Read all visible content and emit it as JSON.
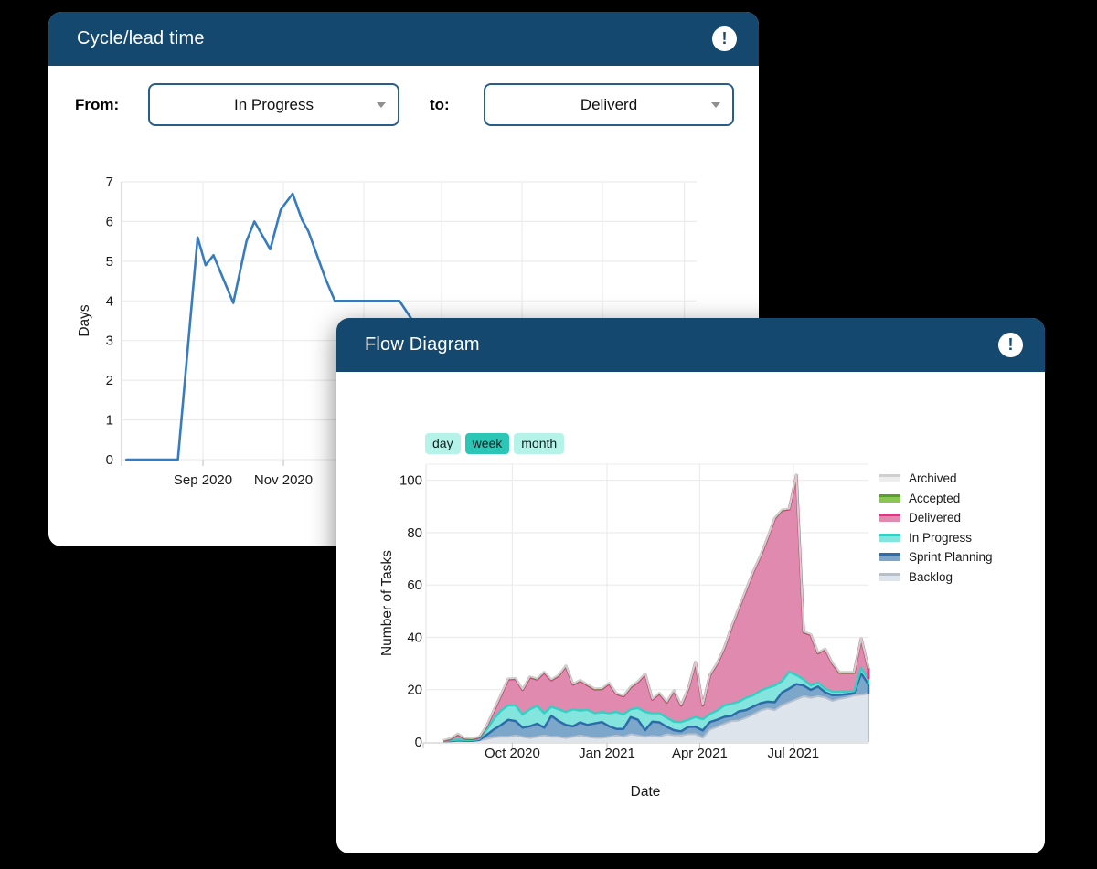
{
  "theme": {
    "page_background": "#000000",
    "card_background": "#ffffff",
    "header_color": "#14486e",
    "selected_interval_color": "#2cc6b6",
    "interval_color": "#b5f2e8",
    "cycle_line_color": "#377cbe"
  },
  "cycle_card": {
    "title": "Cycle/lead time",
    "alert_icon": "!",
    "from_label": "From:",
    "from_value": "In Progress",
    "to_label": "to:",
    "to_value": "Deliverd"
  },
  "flow_card": {
    "title": "Flow Diagram",
    "alert_icon": "!",
    "interval_buttons": [
      {
        "label": "day",
        "selected": false
      },
      {
        "label": "week",
        "selected": true
      },
      {
        "label": "month",
        "selected": false
      }
    ]
  },
  "chart_data": [
    {
      "type": "line",
      "name": "cycle-lead-time",
      "ylabel": "Days",
      "ylim": [
        0,
        7
      ],
      "yticks": [
        0,
        1,
        2,
        3,
        4,
        5,
        6,
        7
      ],
      "grid": true,
      "xticks": [
        {
          "label": "Sep 2020",
          "date": "2020-09-01"
        },
        {
          "label": "Nov 2020",
          "date": "2020-11-01"
        }
      ],
      "grid_dates": [
        "2020-09-01",
        "2020-11-01",
        "2021-01-01",
        "2021-03-01",
        "2021-05-01",
        "2021-07-01",
        "2021-09-01"
      ],
      "line_color": "#377cbe",
      "points": [
        [
          "2020-07-05",
          0
        ],
        [
          "2020-08-13",
          0
        ],
        [
          "2020-08-28",
          5.6
        ],
        [
          "2020-09-03",
          4.9
        ],
        [
          "2020-09-09",
          5.15
        ],
        [
          "2020-09-24",
          3.95
        ],
        [
          "2020-10-04",
          5.5
        ],
        [
          "2020-10-10",
          6.0
        ],
        [
          "2020-10-22",
          5.3
        ],
        [
          "2020-10-30",
          6.3
        ],
        [
          "2020-11-08",
          6.7
        ],
        [
          "2020-11-15",
          6.05
        ],
        [
          "2020-11-20",
          5.75
        ],
        [
          "2020-12-03",
          4.55
        ],
        [
          "2020-12-10",
          4.0
        ],
        [
          "2021-01-28",
          4.0
        ],
        [
          "2021-02-07",
          3.5
        ],
        [
          "2021-02-20",
          3.0
        ]
      ]
    },
    {
      "type": "area",
      "name": "flow-diagram",
      "stacked": true,
      "xlabel": "Date",
      "ylabel": "Number of Tasks",
      "ylim": [
        0,
        106
      ],
      "yticks": [
        0,
        20,
        40,
        60,
        80,
        100
      ],
      "grid": true,
      "legend_position": "right",
      "legend_order_top_to_bottom": [
        "Archived",
        "Accepted",
        "Delivered",
        "In Progress",
        "Sprint Planning",
        "Backlog"
      ],
      "start_date": "2020-07-26",
      "interval": "weekly",
      "interval_days": 7,
      "xticks": [
        {
          "label": "Oct 2020",
          "date": "2020-10-01"
        },
        {
          "label": "Jan 2021",
          "date": "2021-01-01"
        },
        {
          "label": "Apr 2021",
          "date": "2021-04-01"
        },
        {
          "label": "Jul 2021",
          "date": "2021-07-01"
        }
      ],
      "series": [
        {
          "name": "Backlog",
          "fill": "#dee4ec",
          "line": "#b6bfcb",
          "lw": 2,
          "values": [
            0.2,
            0.3,
            0.5,
            0.4,
            0.4,
            0.6,
            1.2,
            1.8,
            2,
            2,
            2.5,
            2,
            1.5,
            2,
            2.5,
            2,
            2,
            1.5,
            2,
            2.5,
            2,
            1.6,
            1.6,
            2,
            2.5,
            2,
            3,
            2.5,
            2,
            2.3,
            2,
            3,
            2.5,
            2.5,
            3,
            3,
            1.6,
            4.7,
            5.8,
            7,
            8,
            8.2,
            9.3,
            10.5,
            12,
            12.8,
            12.2,
            14,
            15.2,
            16.3,
            17.5,
            16.9,
            17.5,
            17,
            15.7,
            16.5,
            17,
            17.8,
            18.1,
            18.5
          ]
        },
        {
          "name": "Sprint Planning",
          "fill": "#7da6cb",
          "line": "#2d6ca8",
          "lw": 2.5,
          "values": [
            0,
            0,
            0.1,
            0.1,
            0.1,
            0.2,
            1.5,
            3,
            4.5,
            6.5,
            5.5,
            3.5,
            4.5,
            5,
            3,
            8,
            6,
            5,
            4,
            5,
            4.5,
            5.5,
            6,
            4,
            2.5,
            3,
            6.5,
            6,
            2.5,
            5.5,
            5.5,
            2.8,
            2,
            1.6,
            2.8,
            2.8,
            2.8,
            2.9,
            2.7,
            2.6,
            2,
            3.5,
            2.9,
            3,
            2.8,
            2.6,
            3,
            4.9,
            5.2,
            5.8,
            4.1,
            3,
            3.7,
            2,
            2.2,
            1.5,
            1.3,
            0.8,
            8.1,
            3.5
          ]
        },
        {
          "name": "In Progress",
          "fill": "#84e4de",
          "line": "#35cfc4",
          "lw": 2.5,
          "values": [
            0.2,
            0.3,
            0.3,
            0.3,
            0.3,
            0.4,
            2,
            4,
            5.5,
            5.5,
            6,
            5,
            6.5,
            6.8,
            5.5,
            3.5,
            4.5,
            5,
            6.5,
            4.5,
            5.8,
            3.9,
            3.8,
            5,
            6.5,
            5.5,
            3,
            4.5,
            7,
            3.2,
            3.5,
            3.5,
            3.3,
            3.5,
            2.7,
            3.8,
            4.3,
            3.1,
            3.5,
            4.4,
            4.6,
            3.7,
            4.7,
            4.3,
            4.8,
            5.3,
            6.4,
            4.4,
            6.4,
            3.5,
            2.3,
            1.7,
            1.5,
            1.4,
            1.3,
            1.2,
            1,
            0.9,
            2.1,
            2
          ]
        },
        {
          "name": "Delivered",
          "fill": "#e08aaf",
          "line": "#cf3e7e",
          "lw": 3,
          "values": [
            0.1,
            0.6,
            2.1,
            0.5,
            0.4,
            0.6,
            1.3,
            3.2,
            6,
            10,
            10.2,
            9.5,
            12.3,
            10.2,
            15.6,
            10.2,
            12.9,
            17.5,
            9.5,
            11.5,
            9.5,
            9.2,
            8.9,
            11.4,
            7,
            7,
            8.5,
            10,
            14.5,
            5.3,
            7.6,
            5.9,
            11.8,
            6.4,
            11.9,
            20.9,
            5.3,
            14.9,
            18,
            22,
            29.4,
            35.6,
            41.1,
            47.2,
            51.4,
            57.3,
            63.9,
            65.3,
            62.2,
            76.4,
            18.1,
            19.4,
            11.3,
            15.1,
            10.8,
            7.3,
            7.2,
            7,
            11.2,
            4
          ]
        },
        {
          "name": "Accepted",
          "fill": "#8ac654",
          "line": "#5a9e2f",
          "lw": 2,
          "values": [
            0.15,
            0.15,
            0.15,
            0.15,
            0.15,
            0.15,
            0.15,
            0.15,
            0.15,
            0.15,
            0.15,
            0.15,
            0.15,
            0.15,
            0.15,
            0.15,
            0.15,
            0.15,
            0.15,
            0.15,
            0.15,
            0.15,
            0.15,
            0.15,
            0.15,
            0.15,
            0.15,
            0.15,
            0.15,
            0.15,
            0.15,
            0.15,
            0.15,
            0.15,
            0.15,
            0.15,
            0.15,
            0.15,
            0.15,
            0.15,
            0.15,
            0.15,
            0.15,
            0.15,
            0.15,
            0.15,
            0.15,
            0.15,
            0.15,
            0.15,
            0.15,
            0.15,
            0.15,
            0.15,
            0.15,
            0.15,
            0.15,
            0.15,
            0.15,
            0.15
          ]
        },
        {
          "name": "Archived",
          "fill": "#eeeeee",
          "line": "#cfcfcf",
          "lw": 2,
          "values": [
            0.15,
            0.15,
            0.15,
            0.15,
            0.15,
            0.15,
            0.15,
            0.15,
            0.15,
            0.15,
            0.15,
            0.15,
            0.15,
            0.15,
            0.15,
            0.15,
            0.15,
            0.15,
            0.15,
            0.15,
            0.15,
            0.15,
            0.15,
            0.15,
            0.15,
            0.15,
            0.15,
            0.15,
            0.15,
            0.15,
            0.15,
            0.15,
            0.15,
            0.15,
            0.15,
            0.15,
            0.15,
            0.15,
            0.15,
            0.15,
            0.15,
            0.15,
            0.15,
            0.15,
            0.15,
            0.15,
            0.15,
            0.15,
            0.15,
            0.15,
            0.15,
            0.15,
            0.15,
            0.15,
            0.15,
            0.15,
            0.15,
            0.15,
            0.15,
            0.15
          ]
        }
      ]
    }
  ]
}
